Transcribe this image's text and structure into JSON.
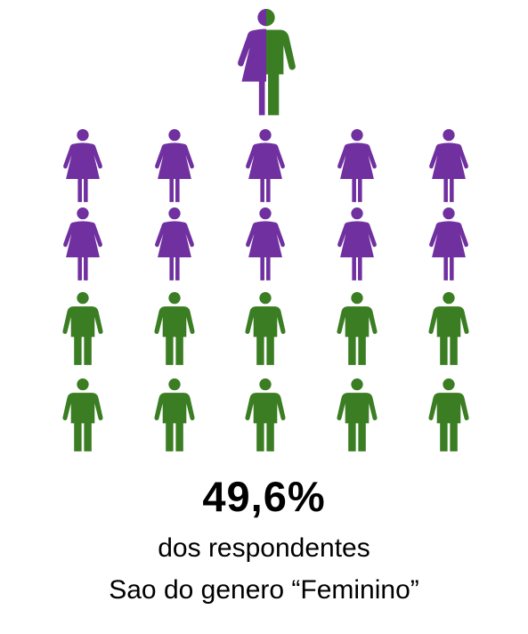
{
  "colors": {
    "female": "#7030A0",
    "male": "#3A7D22"
  },
  "icons": {
    "header": "half-female-half-male-icon",
    "female": "female-person-icon",
    "male": "male-person-icon"
  },
  "grid": {
    "columns": 5,
    "rows": [
      "female",
      "female",
      "male",
      "male"
    ]
  },
  "stat": {
    "percentage": "49,6%",
    "line1": "dos respondentes",
    "line2": "Sao do genero “Feminino”"
  }
}
